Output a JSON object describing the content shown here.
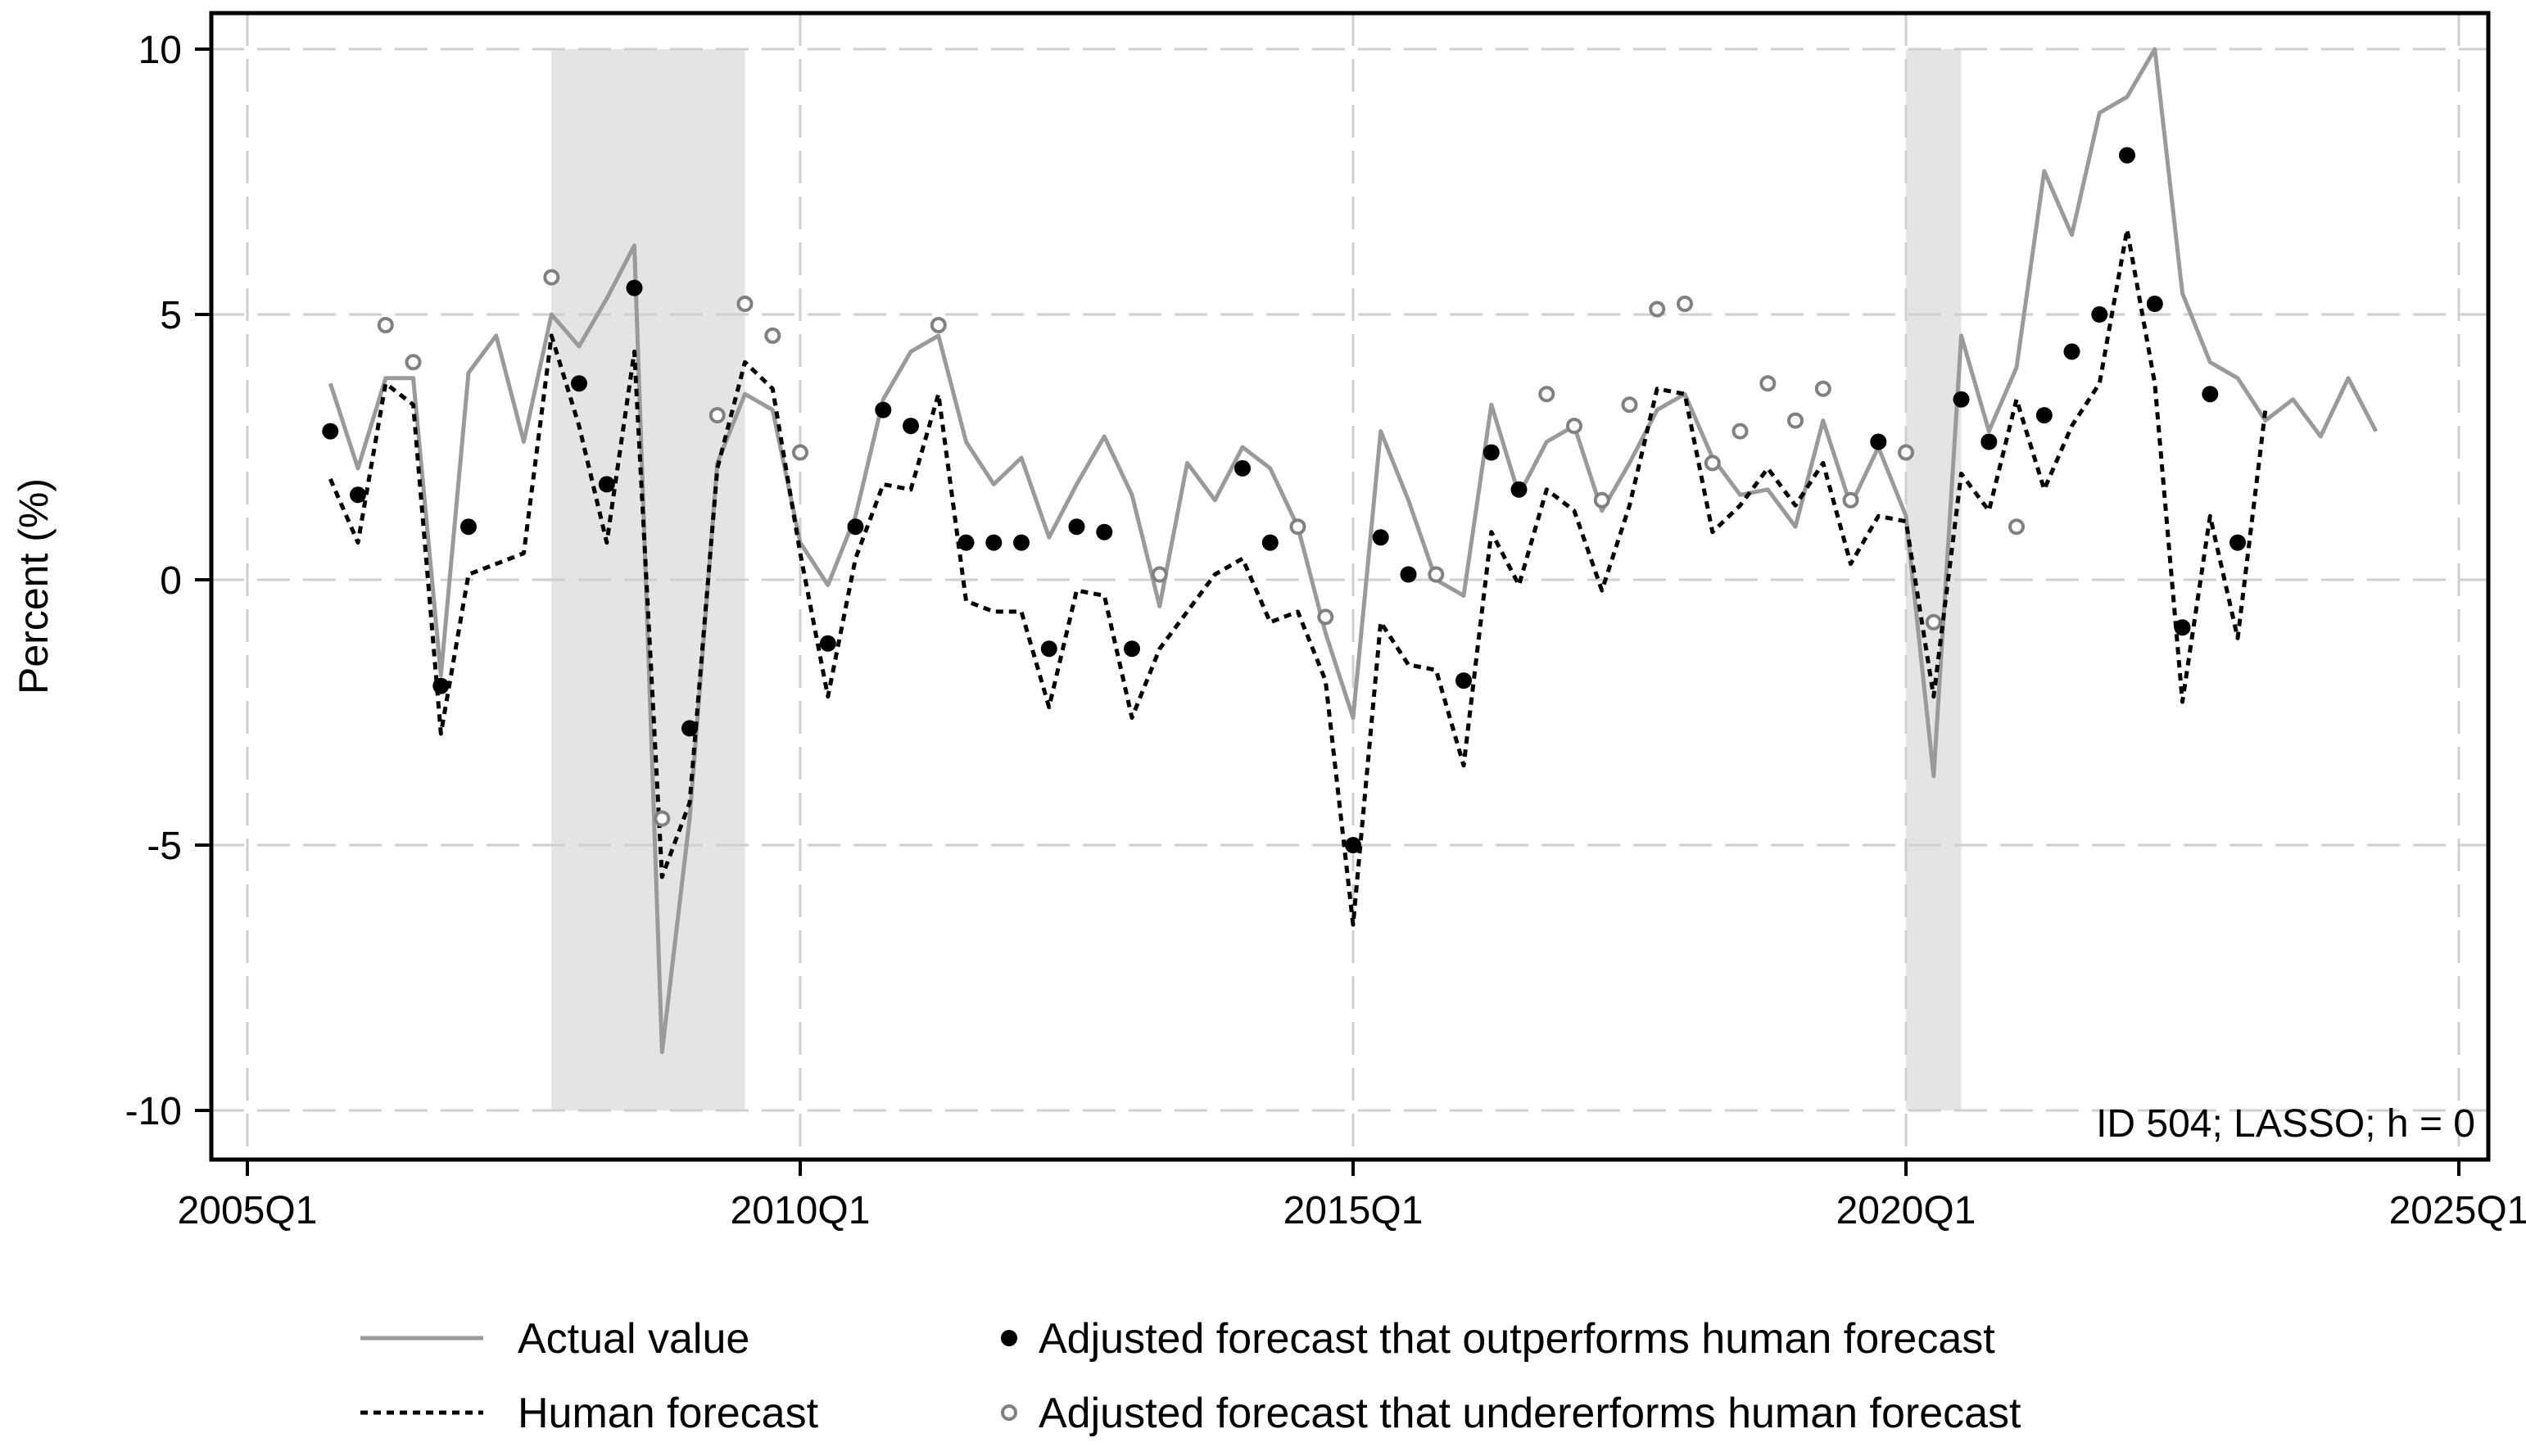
{
  "chart_data": {
    "type": "line",
    "title": "",
    "xlabel": "",
    "ylabel": "Percent (%)",
    "annotation": "ID 504; LASSO; h = 0",
    "xlim": [
      2005.0,
      2025.0
    ],
    "ylim": [
      -10,
      10
    ],
    "grid": true,
    "x_ticks": [
      {
        "value": 2005.0,
        "label": "2005Q1"
      },
      {
        "value": 2010.0,
        "label": "2010Q1"
      },
      {
        "value": 2015.0,
        "label": "2015Q1"
      },
      {
        "value": 2020.0,
        "label": "2020Q1"
      },
      {
        "value": 2025.0,
        "label": "2025Q1"
      }
    ],
    "y_ticks": [
      {
        "value": 10,
        "label": "10"
      },
      {
        "value": 5,
        "label": "5"
      },
      {
        "value": 0,
        "label": "0"
      },
      {
        "value": -5,
        "label": "-5"
      },
      {
        "value": -10,
        "label": "-10"
      }
    ],
    "recession_shading": [
      [
        2007.75,
        2009.5
      ],
      [
        2020.0,
        2020.5
      ]
    ],
    "series": [
      {
        "name": "Actual value",
        "style": "solid",
        "color": "#9a9a9a",
        "x": [
          2005.75,
          2006.0,
          2006.25,
          2006.5,
          2006.75,
          2007.0,
          2007.25,
          2007.5,
          2007.75,
          2008.0,
          2008.25,
          2008.5,
          2008.75,
          2009.0,
          2009.25,
          2009.5,
          2009.75,
          2010.0,
          2010.25,
          2010.5,
          2010.75,
          2011.0,
          2011.25,
          2011.5,
          2011.75,
          2012.0,
          2012.25,
          2012.5,
          2012.75,
          2013.0,
          2013.25,
          2013.5,
          2013.75,
          2014.0,
          2014.25,
          2014.5,
          2014.75,
          2015.0,
          2015.25,
          2015.5,
          2015.75,
          2016.0,
          2016.25,
          2016.5,
          2016.75,
          2017.0,
          2017.25,
          2017.5,
          2017.75,
          2018.0,
          2018.25,
          2018.5,
          2018.75,
          2019.0,
          2019.25,
          2019.5,
          2019.75,
          2020.0,
          2020.25,
          2020.5,
          2020.75,
          2021.0,
          2021.25,
          2021.5,
          2021.75,
          2022.0,
          2022.25,
          2022.5,
          2022.75,
          2023.0,
          2023.25,
          2023.5,
          2023.75,
          2024.0,
          2024.25
        ],
        "values": [
          3.7,
          2.1,
          3.8,
          3.8,
          -1.8,
          3.9,
          4.6,
          2.6,
          5.0,
          4.4,
          5.3,
          6.3,
          -8.9,
          -4.5,
          2.2,
          3.5,
          3.2,
          0.7,
          -0.1,
          1.2,
          3.4,
          4.3,
          4.6,
          2.6,
          1.8,
          2.3,
          0.8,
          1.8,
          2.7,
          1.6,
          -0.5,
          2.2,
          1.5,
          2.5,
          2.1,
          1.0,
          -1.0,
          -2.6,
          2.8,
          1.5,
          0.0,
          -0.3,
          3.3,
          1.6,
          2.6,
          2.9,
          1.3,
          2.2,
          3.2,
          3.5,
          2.3,
          1.6,
          1.7,
          1.0,
          3.0,
          1.4,
          2.5,
          1.2,
          -3.7,
          4.6,
          2.8,
          4.0,
          7.7,
          6.5,
          8.8,
          9.1,
          10.0,
          5.4,
          4.1,
          3.8,
          3.0,
          3.4,
          2.7,
          3.8,
          2.8
        ]
      },
      {
        "name": "Human forecast",
        "style": "dotted",
        "color": "#000000",
        "x": [
          2005.75,
          2006.0,
          2006.25,
          2006.5,
          2006.75,
          2007.0,
          2007.25,
          2007.5,
          2007.75,
          2008.0,
          2008.25,
          2008.5,
          2008.75,
          2009.0,
          2009.25,
          2009.5,
          2009.75,
          2010.0,
          2010.25,
          2010.5,
          2010.75,
          2011.0,
          2011.25,
          2011.5,
          2011.75,
          2012.0,
          2012.25,
          2012.5,
          2012.75,
          2013.0,
          2013.25,
          2013.5,
          2013.75,
          2014.0,
          2014.25,
          2014.5,
          2014.75,
          2015.0,
          2015.25,
          2015.5,
          2015.75,
          2016.0,
          2016.25,
          2016.5,
          2016.75,
          2017.0,
          2017.25,
          2017.5,
          2017.75,
          2018.0,
          2018.25,
          2018.5,
          2018.75,
          2019.0,
          2019.25,
          2019.5,
          2019.75,
          2020.0,
          2020.25,
          2020.5,
          2020.75,
          2021.0,
          2021.25,
          2021.5,
          2021.75,
          2022.0,
          2022.25,
          2022.5,
          2022.75,
          2023.0,
          2023.25
        ],
        "values": [
          1.9,
          0.7,
          3.7,
          3.3,
          -2.9,
          0.1,
          0.3,
          0.5,
          4.6,
          2.9,
          0.7,
          4.3,
          -5.6,
          -4.2,
          2.1,
          4.1,
          3.6,
          0.5,
          -2.2,
          0.4,
          1.8,
          1.7,
          3.5,
          -0.4,
          -0.6,
          -0.6,
          -2.4,
          -0.2,
          -0.3,
          -2.6,
          -1.3,
          -0.6,
          0.1,
          0.4,
          -0.8,
          -0.6,
          -1.9,
          -6.5,
          -0.8,
          -1.6,
          -1.7,
          -3.5,
          0.9,
          -0.1,
          1.7,
          1.3,
          -0.2,
          1.4,
          3.6,
          3.5,
          0.9,
          1.4,
          2.1,
          1.4,
          2.2,
          0.3,
          1.2,
          1.1,
          -2.2,
          2.0,
          1.3,
          3.4,
          1.7,
          2.9,
          3.7,
          6.6,
          3.7,
          -2.3,
          1.2,
          -1.1,
          3.2
        ]
      },
      {
        "name": "Adjusted forecast that outperforms human forecast",
        "style": "marker-filled",
        "color": "#000000",
        "x": [
          2005.75,
          2006.0,
          2006.75,
          2007.0,
          2008.0,
          2008.25,
          2008.5,
          2009.0,
          2010.25,
          2010.5,
          2010.75,
          2011.0,
          2011.5,
          2011.75,
          2012.0,
          2012.25,
          2012.5,
          2012.75,
          2013.0,
          2014.0,
          2014.25,
          2015.0,
          2015.25,
          2015.5,
          2016.0,
          2016.25,
          2016.5,
          2019.75,
          2020.5,
          2020.75,
          2021.25,
          2021.5,
          2021.75,
          2022.0,
          2022.25,
          2022.5,
          2022.75,
          2023.0
        ],
        "values": [
          2.8,
          1.6,
          -2.0,
          1.0,
          3.7,
          1.8,
          5.5,
          -2.8,
          -1.2,
          1.0,
          3.2,
          2.9,
          0.7,
          0.7,
          0.7,
          -1.3,
          1.0,
          0.9,
          -1.3,
          2.1,
          0.7,
          -5.0,
          0.8,
          0.1,
          -1.9,
          2.4,
          1.7,
          2.6,
          3.4,
          2.6,
          3.1,
          4.3,
          5.0,
          8.0,
          5.2,
          -0.9,
          3.5,
          0.7
        ]
      },
      {
        "name": "Adjusted forecast that undererforms human forecast",
        "style": "marker-hollow",
        "color": "#808080",
        "x": [
          2006.25,
          2006.5,
          2007.75,
          2008.75,
          2009.25,
          2009.5,
          2009.75,
          2010.0,
          2011.25,
          2013.25,
          2014.5,
          2014.75,
          2015.75,
          2016.75,
          2017.0,
          2017.25,
          2017.5,
          2017.75,
          2018.0,
          2018.25,
          2018.5,
          2018.75,
          2019.0,
          2019.25,
          2019.5,
          2020.0,
          2020.25,
          2021.0
        ],
        "values": [
          4.8,
          4.1,
          5.7,
          -4.5,
          3.1,
          5.2,
          4.6,
          2.4,
          4.8,
          0.1,
          1.0,
          -0.7,
          0.1,
          3.5,
          2.9,
          1.5,
          3.3,
          5.1,
          5.2,
          2.2,
          2.8,
          3.7,
          3.0,
          3.6,
          1.5,
          2.4,
          -0.8,
          1.0
        ]
      }
    ],
    "legend": {
      "placement": "bottom",
      "entries": [
        "Actual value",
        "Human forecast",
        "Adjusted forecast that outperforms human forecast",
        "Adjusted forecast that undererforms human forecast"
      ]
    }
  }
}
